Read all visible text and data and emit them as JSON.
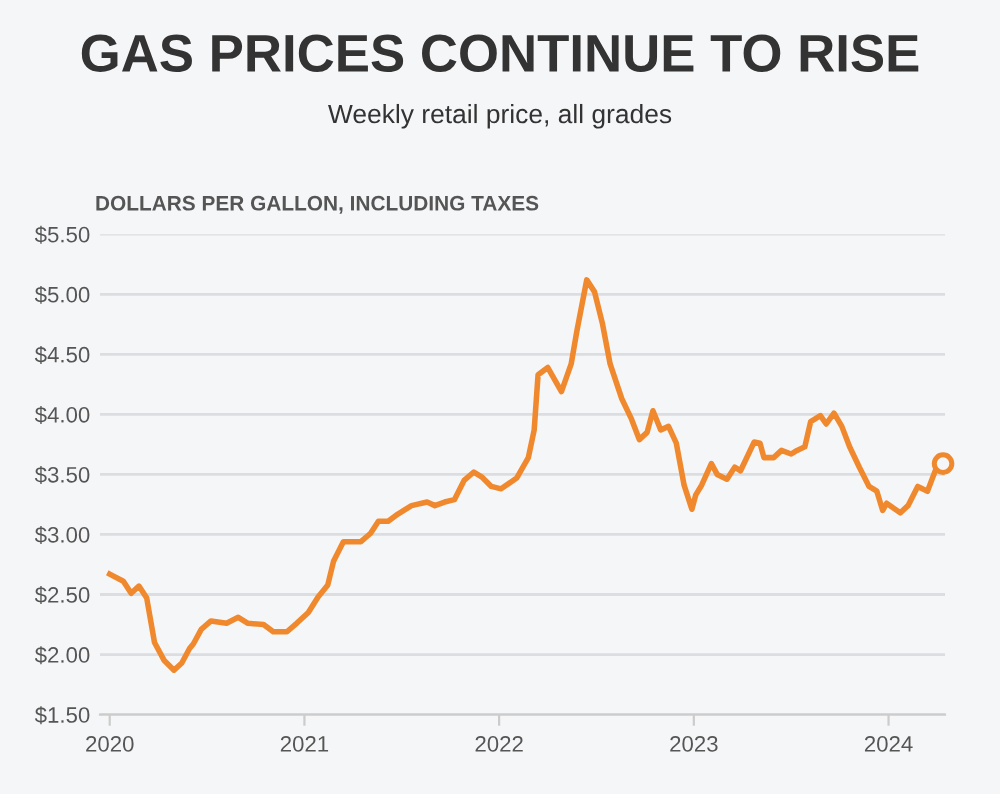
{
  "chart_data": {
    "type": "line",
    "title": "GAS PRICES CONTINUE TO RISE",
    "subtitle": "Weekly retail price, all grades",
    "ylabel": "DOLLARS PER GALLON, INCLUDING TAXES",
    "series": [
      {
        "color": "#f0892e",
        "x": [
          2020.0,
          2020.07,
          2020.11,
          2020.15,
          2020.19,
          2020.23,
          2020.28,
          2020.33,
          2020.37,
          2020.41,
          2020.43,
          2020.47,
          2020.52,
          2020.6,
          2020.66,
          2020.71,
          2020.79,
          2020.84,
          2020.91,
          2020.96,
          2021.02,
          2021.07,
          2021.12,
          2021.15,
          2021.2,
          2021.29,
          2021.34,
          2021.38,
          2021.43,
          2021.48,
          2021.55,
          2021.63,
          2021.67,
          2021.72,
          2021.77,
          2021.82,
          2021.87,
          2021.91,
          2021.96,
          2022.01,
          2022.09,
          2022.15,
          2022.18,
          2022.2,
          2022.25,
          2022.32,
          2022.37,
          2022.4,
          2022.45,
          2022.49,
          2022.53,
          2022.57,
          2022.63,
          2022.68,
          2022.72,
          2022.76,
          2022.79,
          2022.83,
          2022.87,
          2022.91,
          2022.95,
          2022.99,
          2023.01,
          2023.04,
          2023.09,
          2023.12,
          2023.17,
          2023.21,
          2023.24,
          2023.31,
          2023.34,
          2023.36,
          2023.41,
          2023.45,
          2023.5,
          2023.53,
          2023.57,
          2023.6,
          2023.65,
          2023.68,
          2023.72,
          2023.76,
          2023.8,
          2023.85,
          2023.9,
          2023.94,
          2023.97,
          2023.99,
          2024.06,
          2024.1,
          2024.15,
          2024.2,
          2024.24,
          2024.28
        ],
        "values": [
          2.67,
          2.61,
          2.51,
          2.57,
          2.47,
          2.1,
          1.95,
          1.87,
          1.93,
          2.05,
          2.09,
          2.21,
          2.28,
          2.26,
          2.31,
          2.26,
          2.25,
          2.19,
          2.19,
          2.26,
          2.35,
          2.48,
          2.58,
          2.78,
          2.94,
          2.94,
          3.01,
          3.11,
          3.11,
          3.17,
          3.24,
          3.27,
          3.24,
          3.27,
          3.29,
          3.45,
          3.52,
          3.48,
          3.4,
          3.38,
          3.47,
          3.64,
          3.87,
          4.33,
          4.39,
          4.19,
          4.42,
          4.7,
          5.12,
          5.02,
          4.76,
          4.42,
          4.13,
          3.96,
          3.79,
          3.85,
          4.03,
          3.87,
          3.9,
          3.76,
          3.41,
          3.21,
          3.33,
          3.41,
          3.59,
          3.5,
          3.46,
          3.56,
          3.53,
          3.77,
          3.76,
          3.64,
          3.64,
          3.7,
          3.67,
          3.7,
          3.73,
          3.94,
          3.99,
          3.92,
          4.01,
          3.9,
          3.73,
          3.56,
          3.4,
          3.36,
          3.2,
          3.26,
          3.18,
          3.24,
          3.4,
          3.36,
          3.53,
          3.59
        ]
      },
      {
        "type": "scatter",
        "color": "#f0892e",
        "marker": "circle",
        "x": [
          2024.28
        ],
        "values": [
          3.59
        ]
      }
    ],
    "xlim": [
      2019.95,
      2024.29
    ],
    "xticks": [
      2020,
      2021,
      2022,
      2023,
      2024
    ],
    "ylim": [
      1.5,
      5.5
    ],
    "yticks": [
      {
        "value": 1.5,
        "label": "$1.50"
      },
      {
        "value": 2.0,
        "label": "$2.00"
      },
      {
        "value": 2.5,
        "label": "$2.50"
      },
      {
        "value": 3.0,
        "label": "$3.00"
      },
      {
        "value": 3.5,
        "label": "$3.50"
      },
      {
        "value": 4.0,
        "label": "$4.00"
      },
      {
        "value": 4.5,
        "label": "$4.50"
      },
      {
        "value": 5.0,
        "label": "$5.00"
      },
      {
        "value": 5.5,
        "label": "$5.50"
      }
    ],
    "grid": "y",
    "marker": "none",
    "line_style": "solid"
  }
}
